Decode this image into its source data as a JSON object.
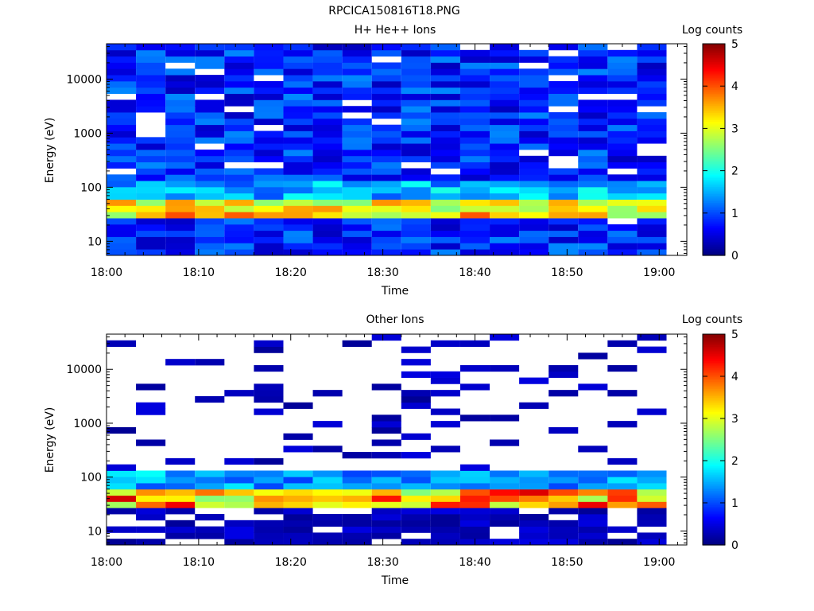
{
  "figure_title": "RPCICA150816T18.PNG",
  "chart_data": [
    {
      "type": "heatmap",
      "title": "H+ He++ Ions",
      "xlabel": "Time",
      "ylabel": "Energy (eV)",
      "x_ticks": [
        "18:00",
        "18:10",
        "18:20",
        "18:30",
        "18:40",
        "18:50",
        "19:00"
      ],
      "x_range": [
        "18:00",
        "19:03"
      ],
      "y_ticks": [
        "10",
        "100",
        "1000",
        "10000"
      ],
      "y_scale": "log",
      "y_range": [
        5.5,
        45000
      ],
      "colorbar_title": "Log counts",
      "colorbar_ticks": [
        "0",
        "1",
        "2",
        "3",
        "4",
        "5"
      ],
      "colorbar_range": [
        0,
        5
      ],
      "colormap": "jet",
      "columns": 19,
      "column_minutes": 3.2,
      "dominant_band_eV": [
        25,
        65
      ],
      "dominant_band_log_counts": [
        2.5,
        4.0
      ],
      "background_log_counts": [
        0.3,
        1.3
      ]
    },
    {
      "type": "heatmap",
      "title": "Other Ions",
      "xlabel": "Time",
      "ylabel": "Energy (eV)",
      "x_ticks": [
        "18:00",
        "18:10",
        "18:20",
        "18:30",
        "18:40",
        "18:50",
        "19:00"
      ],
      "x_range": [
        "18:00",
        "19:03"
      ],
      "y_ticks": [
        "10",
        "100",
        "1000",
        "10000"
      ],
      "y_scale": "log",
      "y_range": [
        5.5,
        45000
      ],
      "colorbar_title": "Log counts",
      "colorbar_ticks": [
        "0",
        "1",
        "2",
        "3",
        "4",
        "5"
      ],
      "colorbar_range": [
        0,
        5
      ],
      "colormap": "jet",
      "columns": 19,
      "column_minutes": 3.2,
      "dominant_band_eV": [
        25,
        65
      ],
      "dominant_band_log_counts": [
        2.5,
        4.6
      ],
      "background_log_counts": [
        0.1,
        0.5
      ]
    }
  ]
}
